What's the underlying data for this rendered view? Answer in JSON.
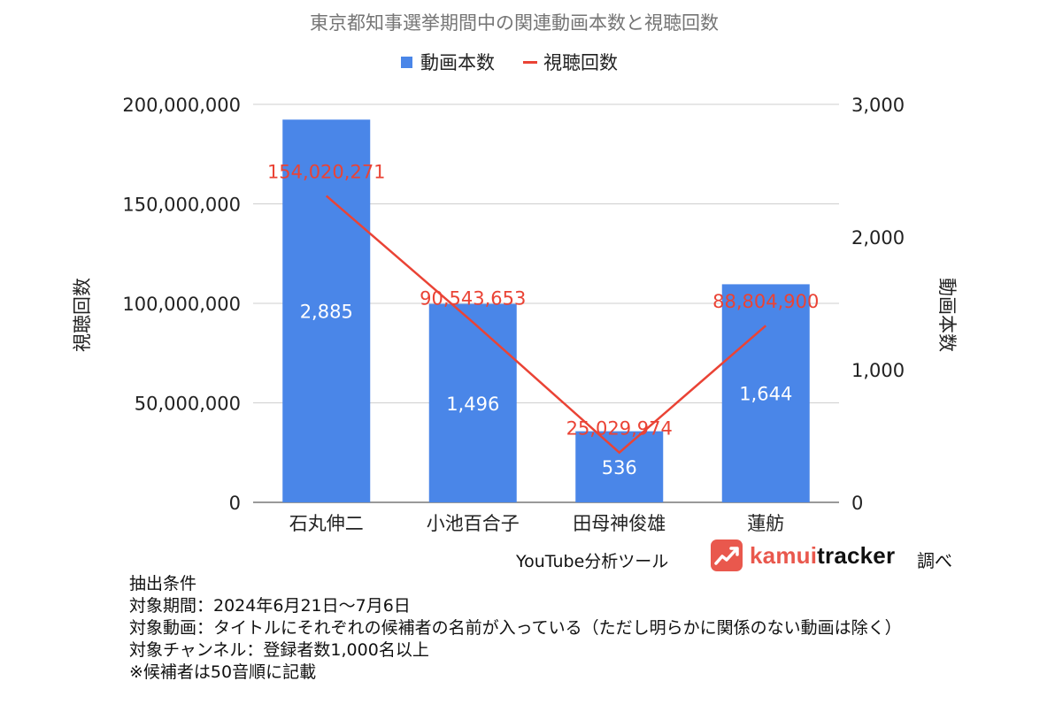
{
  "chart_data": {
    "type": "bar+line",
    "title": "東京都知事選挙期間中の関連動画本数と視聴回数",
    "categories": [
      "石丸伸二",
      "小池百合子",
      "田母神俊雄",
      "蓮舫"
    ],
    "series": [
      {
        "name": "動画本数",
        "type": "bar",
        "axis": "right",
        "color": "#4a86e8",
        "values": [
          2885,
          1496,
          536,
          1644
        ],
        "labels": [
          "2,885",
          "1,496",
          "536",
          "1,644"
        ]
      },
      {
        "name": "視聴回数",
        "type": "line",
        "axis": "left",
        "color": "#ea4335",
        "values": [
          154020271,
          90543653,
          25029974,
          88804900
        ],
        "labels": [
          "154,020,271",
          "90,543,653",
          "25,029,974",
          "88,804,900"
        ]
      }
    ],
    "ylabel_left": "視聴回数",
    "ylabel_right": "動画本数",
    "ylim_left": [
      0,
      200000000
    ],
    "ylim_right": [
      0,
      3000
    ],
    "yticks_left": [
      "0",
      "50,000,000",
      "100,000,000",
      "150,000,000",
      "200,000,000"
    ],
    "yticks_right": [
      "0",
      "1,000",
      "2,000",
      "3,000"
    ],
    "legend_position": "top",
    "grid": true
  },
  "credit": {
    "tool": "YouTube分析ツール",
    "brand_kamui": "kamui",
    "brand_tracker": "tracker",
    "suffix": "調べ"
  },
  "notes": [
    "抽出条件",
    "対象期間：2024年6月21日〜7月6日",
    "対象動画：タイトルにそれぞれの候補者の名前が入っている（ただし明らかに関係のない動画は除く）",
    "対象チャンネル：登録者数1,000名以上",
    "※候補者は50音順に記載"
  ]
}
